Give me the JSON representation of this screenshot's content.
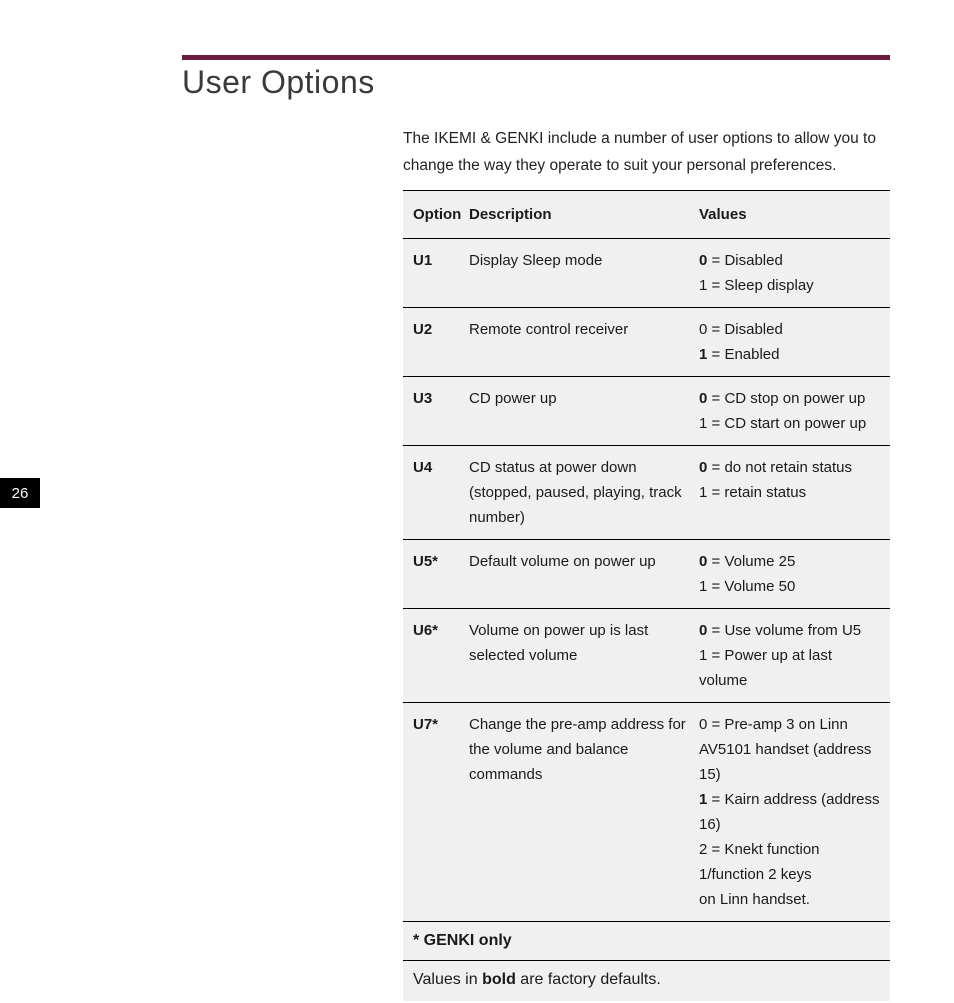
{
  "page": {
    "number": "26",
    "title": "User Options",
    "intro": "The IKEMI & GENKI include a number of user options to allow you to change the way they operate  to suit your personal preferences."
  },
  "colors": {
    "rule": "#6b1d3e",
    "tab_bg": "#000000",
    "tab_fg": "#ffffff",
    "table_bg": "#f0f0f1",
    "text": "#1a1a1a"
  },
  "table": {
    "headers": {
      "option": "Option",
      "description": "Description",
      "values": "Values"
    },
    "rows": [
      {
        "option": "U1",
        "description": "Display Sleep mode",
        "values": [
          {
            "bold_prefix": "0",
            "rest": " = Disabled"
          },
          {
            "bold_prefix": "",
            "rest": "1 = Sleep display"
          }
        ]
      },
      {
        "option": "U2",
        "description": "Remote control receiver",
        "values": [
          {
            "bold_prefix": "",
            "rest": "0 = Disabled"
          },
          {
            "bold_prefix": "1",
            "rest": " = Enabled"
          }
        ]
      },
      {
        "option": "U3",
        "description": "CD power up",
        "values": [
          {
            "bold_prefix": "0",
            "rest": " = CD stop on power up"
          },
          {
            "bold_prefix": "",
            "rest": "1 = CD start on power up"
          }
        ]
      },
      {
        "option": "U4",
        "description": "CD status at power down (stopped, paused, playing, track number)",
        "values": [
          {
            "bold_prefix": "0",
            "rest": " = do not retain status"
          },
          {
            "bold_prefix": "",
            "rest": "1 = retain status"
          }
        ]
      },
      {
        "option": "U5*",
        "description": "Default volume on power up",
        "values": [
          {
            "bold_prefix": "0",
            "rest": " = Volume 25"
          },
          {
            "bold_prefix": "",
            "rest": "1 = Volume 50"
          }
        ]
      },
      {
        "option": "U6*",
        "description": "Volume on power up is last selected volume",
        "values": [
          {
            "bold_prefix": "0",
            "rest": " = Use volume from U5"
          },
          {
            "bold_prefix": "",
            "rest": "1 = Power up at last volume"
          }
        ]
      },
      {
        "option": "U7*",
        "description": "Change the pre-amp address for the volume and balance commands",
        "values": [
          {
            "bold_prefix": "",
            "rest": "0 = Pre-amp 3 on Linn AV5101 handset (address 15)"
          },
          {
            "bold_prefix": "1",
            "rest": " = Kairn address (address 16)"
          },
          {
            "bold_prefix": "",
            "rest": "2 = Knekt function 1/function 2 keys"
          },
          {
            "bold_prefix": "",
            "rest": "on Linn handset."
          }
        ]
      }
    ],
    "footnote_bold": "* GENKI only",
    "footnote_plain_pre": "Values in ",
    "footnote_plain_bold": "bold",
    "footnote_plain_post": " are factory defaults."
  }
}
